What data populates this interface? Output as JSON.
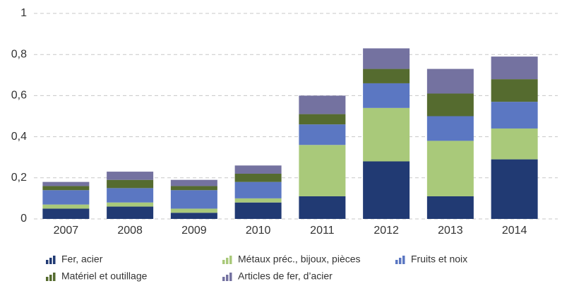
{
  "chart_data": {
    "type": "stacked_bar",
    "categories": [
      "2007",
      "2008",
      "2009",
      "2010",
      "2011",
      "2012",
      "2013",
      "2014"
    ],
    "series": [
      {
        "name": "Fer, acier",
        "color": "#213a73",
        "values": [
          0.05,
          0.06,
          0.03,
          0.08,
          0.11,
          0.28,
          0.11,
          0.29
        ]
      },
      {
        "name": "Métaux préc., bijoux, pièces",
        "color": "#a9c97a",
        "values": [
          0.02,
          0.02,
          0.02,
          0.02,
          0.25,
          0.26,
          0.27,
          0.15
        ]
      },
      {
        "name": "Fruits et noix",
        "color": "#5b77c2",
        "values": [
          0.07,
          0.07,
          0.09,
          0.08,
          0.1,
          0.12,
          0.12,
          0.13
        ]
      },
      {
        "name": "Matériel et outillage",
        "color": "#556b2f",
        "values": [
          0.02,
          0.04,
          0.02,
          0.04,
          0.05,
          0.07,
          0.11,
          0.11
        ]
      },
      {
        "name": "Articles de fer, d’acier",
        "color": "#7472a0",
        "values": [
          0.02,
          0.04,
          0.03,
          0.04,
          0.09,
          0.1,
          0.12,
          0.11
        ]
      }
    ],
    "ylim": [
      0,
      1
    ],
    "yticks": [
      0,
      {
        "value": 0.2,
        "label": "0,2"
      },
      {
        "value": 0.4,
        "label": "0,4"
      },
      {
        "value": 0.6,
        "label": "0,6"
      },
      {
        "value": 0.8,
        "label": "0,8"
      },
      1
    ],
    "grid": true
  }
}
